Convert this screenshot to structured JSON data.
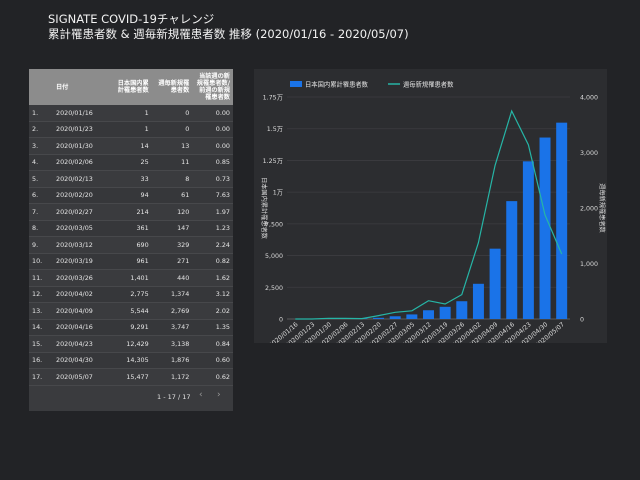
{
  "header": {
    "title": "SIGNATE COVID-19チャレンジ",
    "subtitle": "累計罹患者数 & 週毎新規罹患者数  推移 (2020/01/16 - 2020/05/07)"
  },
  "table": {
    "columns": [
      "",
      "日付",
      "日本国内累計罹患者数",
      "週毎新規罹患者数",
      "当該週の新規罹患者数/前週の新規罹患者数"
    ],
    "rows": [
      [
        "1.",
        "2020/01/16",
        "1",
        "0",
        "0.00"
      ],
      [
        "2.",
        "2020/01/23",
        "1",
        "0",
        "0.00"
      ],
      [
        "3.",
        "2020/01/30",
        "14",
        "13",
        "0.00"
      ],
      [
        "4.",
        "2020/02/06",
        "25",
        "11",
        "0.85"
      ],
      [
        "5.",
        "2020/02/13",
        "33",
        "8",
        "0.73"
      ],
      [
        "6.",
        "2020/02/20",
        "94",
        "61",
        "7.63"
      ],
      [
        "7.",
        "2020/02/27",
        "214",
        "120",
        "1.97"
      ],
      [
        "8.",
        "2020/03/05",
        "361",
        "147",
        "1.23"
      ],
      [
        "9.",
        "2020/03/12",
        "690",
        "329",
        "2.24"
      ],
      [
        "10.",
        "2020/03/19",
        "961",
        "271",
        "0.82"
      ],
      [
        "11.",
        "2020/03/26",
        "1,401",
        "440",
        "1.62"
      ],
      [
        "12.",
        "2020/04/02",
        "2,775",
        "1,374",
        "3.12"
      ],
      [
        "13.",
        "2020/04/09",
        "5,544",
        "2,769",
        "2.02"
      ],
      [
        "14.",
        "2020/04/16",
        "9,291",
        "3,747",
        "1.35"
      ],
      [
        "15.",
        "2020/04/23",
        "12,429",
        "3,138",
        "0.84"
      ],
      [
        "16.",
        "2020/04/30",
        "14,305",
        "1,876",
        "0.60"
      ],
      [
        "17.",
        "2020/05/07",
        "15,477",
        "1,172",
        "0.62"
      ]
    ],
    "pagination": "1 - 17 / 17",
    "prev_icon": "chevron-left-icon",
    "next_icon": "chevron-right-icon"
  },
  "chart_data": {
    "type": "bar",
    "categories": [
      "2020/01/16",
      "2020/01/23",
      "2020/01/30",
      "2020/02/06",
      "2020/02/13",
      "2020/02/20",
      "2020/02/27",
      "2020/03/05",
      "2020/03/12",
      "2020/03/19",
      "2020/03/26",
      "2020/04/02",
      "2020/04/09",
      "2020/04/16",
      "2020/04/23",
      "2020/04/30",
      "2020/05/07"
    ],
    "series": [
      {
        "name": "日本国内累計罹患者数",
        "type": "bar",
        "axis": "left",
        "color": "#1a73e8",
        "values": [
          1,
          1,
          14,
          25,
          33,
          94,
          214,
          361,
          690,
          961,
          1401,
          2775,
          5544,
          9291,
          12429,
          14305,
          15477
        ]
      },
      {
        "name": "週毎新規罹患者数",
        "type": "line",
        "axis": "right",
        "color": "#26b5a6",
        "values": [
          0,
          0,
          13,
          11,
          8,
          61,
          120,
          147,
          329,
          271,
          440,
          1374,
          2769,
          3747,
          3138,
          1876,
          1172
        ]
      }
    ],
    "ylabel_left": "日本国内累計罹患者数",
    "ylabel_right": "週毎新規罹患者数",
    "ylim_left": [
      0,
      17500
    ],
    "ylim_right": [
      0,
      4000
    ],
    "yticks_left": [
      "0",
      "2,500",
      "5,000",
      "7,500",
      "1万",
      "1.25万",
      "1.5万",
      "1.75万"
    ],
    "yticks_right": [
      "0",
      "1,000",
      "2,000",
      "3,000",
      "4,000"
    ],
    "xtick_labels": [
      "2020/01/16",
      "2020/01/23",
      "2020/01/30",
      "2020/02/06",
      "2020/02/13",
      "2020/02/20",
      "2020/02/27",
      "2020/03/05",
      "2020/03/12",
      "2020/03/19",
      "2020/03/26",
      "2020/04/02",
      "2020/04/09",
      "2020/04/16",
      "2020/04/23",
      "2020/04/30",
      "2020/05/07"
    ],
    "legend_position": "top-left",
    "grid": true
  }
}
